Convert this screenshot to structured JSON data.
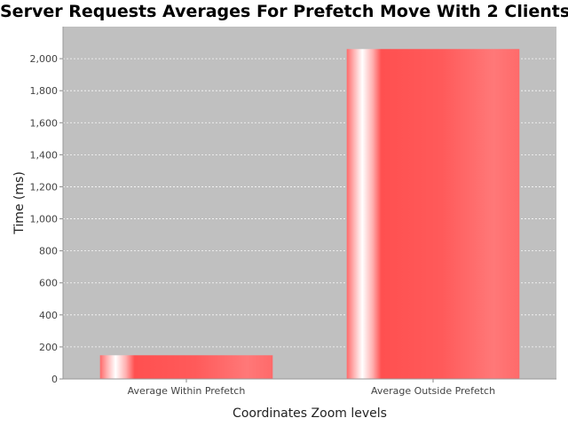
{
  "chart_data": {
    "type": "bar",
    "title": "Server Requests Averages For Prefetch Move With 2 Clients",
    "xlabel": "Coordinates Zoom levels",
    "ylabel": "Time (ms)",
    "categories": [
      "Average Within Prefetch",
      "Average Outside Prefetch"
    ],
    "values": [
      148,
      2060
    ],
    "ylim": [
      0,
      2200
    ],
    "yticks": [
      0,
      200,
      400,
      600,
      800,
      1000,
      1200,
      1400,
      1600,
      1800,
      2000
    ],
    "ytick_labels": [
      "0",
      "200",
      "400",
      "600",
      "800",
      "1,000",
      "1,200",
      "1,400",
      "1,600",
      "1,800",
      "2,000"
    ],
    "grid": true,
    "legend": "none",
    "colors": {
      "plot_background": "#c0c0c0",
      "bar": "#ff5555",
      "bar_highlight": "#ffffff",
      "gridline": "#ffffff"
    }
  }
}
